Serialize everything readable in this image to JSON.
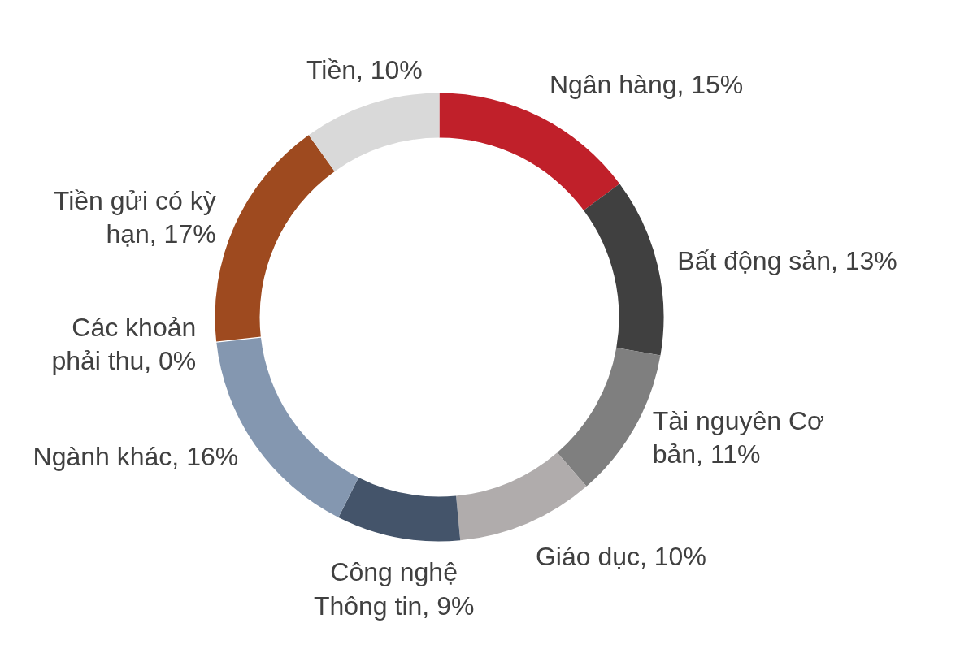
{
  "chart_data": {
    "type": "donut",
    "categories": [
      "Ngân hàng",
      "Bất động sản",
      "Tài nguyên Cơ bản",
      "Giáo dục",
      "Công nghệ Thông tin",
      "Ngành khác",
      "Các khoản phải thu",
      "Tiền gửi có kỳ hạn",
      "Tiền"
    ],
    "values": [
      15,
      13,
      11,
      10,
      9,
      16,
      0,
      17,
      10
    ],
    "colors": [
      "#c0202a",
      "#404040",
      "#7f7f7f",
      "#b0acac",
      "#44546a",
      "#8497b0",
      "#ffffff",
      "#9e4a1f",
      "#d9d9d9"
    ],
    "value_labels": [
      "15%",
      "13%",
      "11%",
      "10%",
      "9%",
      "16%",
      "0%",
      "17%",
      "10%"
    ]
  }
}
